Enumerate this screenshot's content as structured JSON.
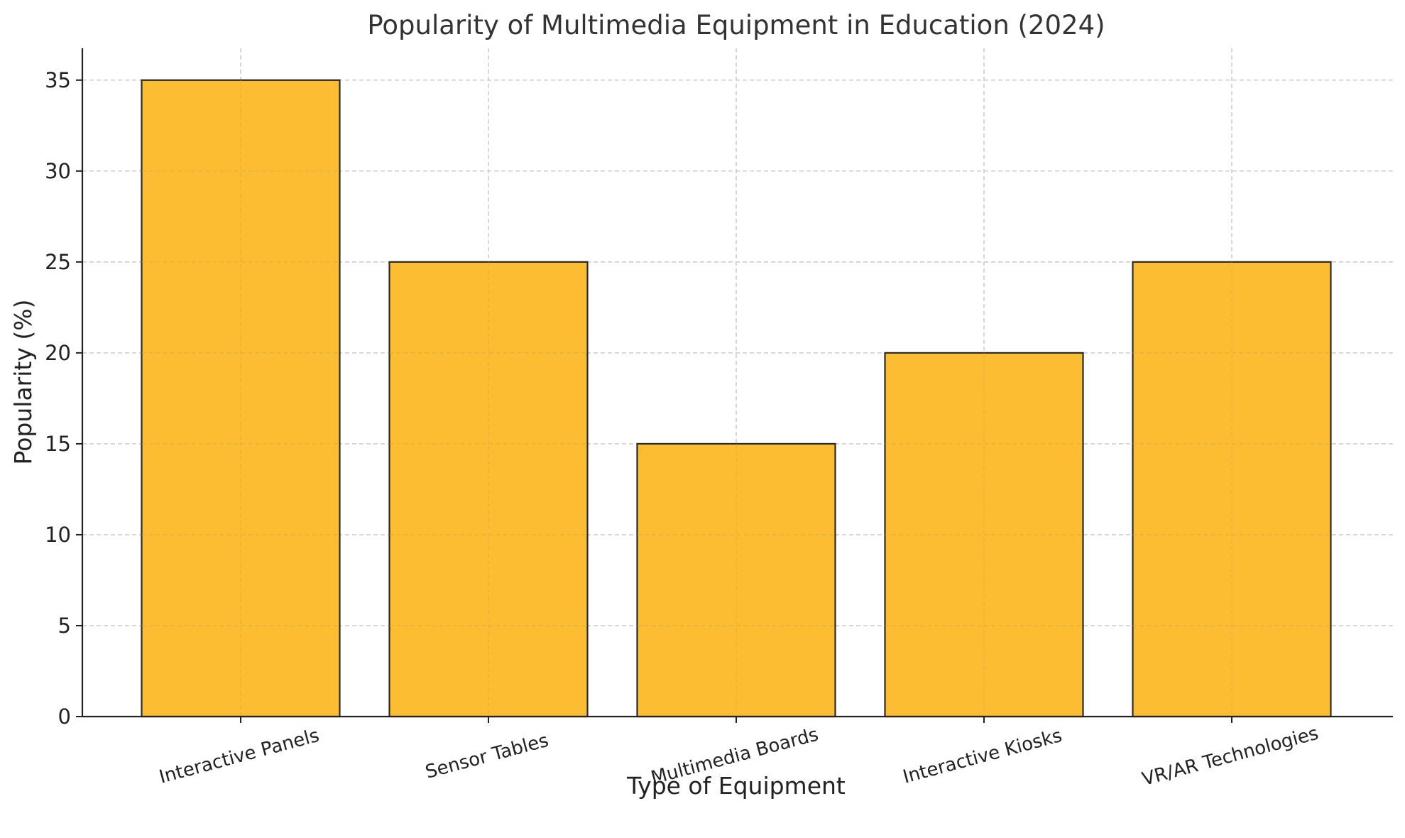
{
  "chart_data": {
    "type": "bar",
    "title": "Popularity of Multimedia Equipment in Education (2024)",
    "xlabel": "Type of Equipment",
    "ylabel": "Popularity (%)",
    "categories": [
      "Interactive Panels",
      "Sensor Tables",
      "Multimedia Boards",
      "Interactive Kiosks",
      "VR/AR Technologies"
    ],
    "values": [
      35,
      25,
      15,
      20,
      25
    ],
    "ylim": [
      0,
      36.75
    ],
    "yticks": [
      0,
      5,
      10,
      15,
      20,
      25,
      30,
      35
    ],
    "grid": true,
    "legend": "none",
    "colors": {
      "bar_fill": "#fdbd33",
      "bar_edge": "#2a2a2a",
      "grid": "#c8c8c8",
      "axis": "#222222"
    }
  }
}
